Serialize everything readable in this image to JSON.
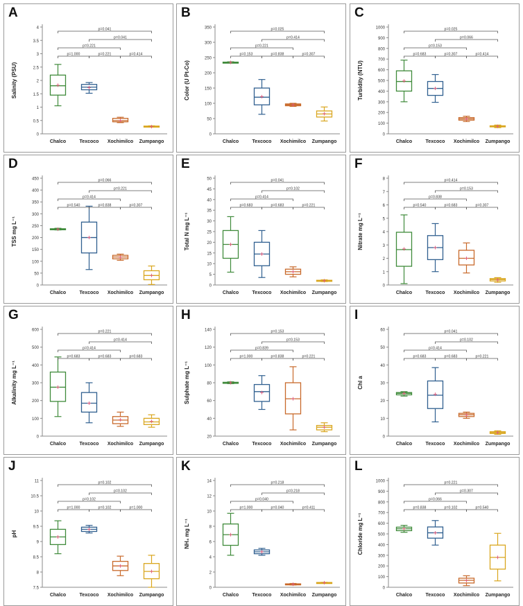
{
  "colors": {
    "Chalco": "#3f8a3a",
    "Texcoco": "#2f5f8f",
    "Xochimilco": "#c8692a",
    "Zumpango": "#d9a61e",
    "mean": "#e05a7a",
    "bracket": "#555555"
  },
  "chart_data": [
    {
      "panel": "A",
      "type": "box",
      "ylabel": "Salinity (PSU)",
      "ylim": [
        0,
        4
      ],
      "yticks": [
        "0",
        "0.5",
        "1",
        "1.5",
        "2",
        "2.5",
        "3",
        "3.5",
        "4"
      ],
      "categories": [
        "Chalco",
        "Texcoco",
        "Xochimilco",
        "Zumpango"
      ],
      "boxes": [
        {
          "min": 1.05,
          "q1": 1.45,
          "median": 1.8,
          "q3": 2.2,
          "max": 2.6,
          "mean": 1.82
        },
        {
          "min": 1.52,
          "q1": 1.65,
          "median": 1.75,
          "q3": 1.85,
          "max": 1.92,
          "mean": 1.73
        },
        {
          "min": 0.42,
          "q1": 0.45,
          "median": 0.5,
          "q3": 0.58,
          "max": 0.62,
          "mean": 0.5
        },
        {
          "min": 0.25,
          "q1": 0.26,
          "median": 0.27,
          "q3": 0.29,
          "max": 0.3,
          "mean": 0.27
        }
      ],
      "brackets": [
        {
          "from": 0,
          "to": 3,
          "label": "p=0.041"
        },
        {
          "from": 1,
          "to": 3,
          "label": "p=0.041"
        },
        {
          "from": 0,
          "to": 2,
          "label": "p=0.221"
        },
        {
          "from": 0,
          "to": 1,
          "label": "p=1.000"
        },
        {
          "from": 1,
          "to": 2,
          "label": "p=0.221"
        },
        {
          "from": 2,
          "to": 3,
          "label": "p=0.414"
        }
      ]
    },
    {
      "panel": "B",
      "type": "box",
      "ylabel": "Color (U Pt-Co)",
      "ylim": [
        0,
        350
      ],
      "yticks": [
        "0",
        "50",
        "100",
        "150",
        "200",
        "250",
        "300",
        "350"
      ],
      "categories": [
        "Chalco",
        "Texcoco",
        "Xochimilco",
        "Zumpango"
      ],
      "boxes": [
        {
          "min": 232,
          "q1": 233,
          "median": 234,
          "q3": 235,
          "max": 236,
          "mean": 234
        },
        {
          "min": 64,
          "q1": 95,
          "median": 120,
          "q3": 150,
          "max": 178,
          "mean": 122
        },
        {
          "min": 90,
          "q1": 92,
          "median": 95,
          "q3": 98,
          "max": 100,
          "mean": 95
        },
        {
          "min": 42,
          "q1": 55,
          "median": 65,
          "q3": 75,
          "max": 88,
          "mean": 66
        }
      ],
      "brackets": [
        {
          "from": 0,
          "to": 3,
          "label": "p=0.025"
        },
        {
          "from": 1,
          "to": 3,
          "label": "p=0.414"
        },
        {
          "from": 0,
          "to": 2,
          "label": "p=0.221"
        },
        {
          "from": 0,
          "to": 1,
          "label": "p=0.153"
        },
        {
          "from": 1,
          "to": 2,
          "label": "p=0.838"
        },
        {
          "from": 2,
          "to": 3,
          "label": "p=0.307"
        }
      ]
    },
    {
      "panel": "C",
      "type": "box",
      "ylabel": "Turbidity (NTU)",
      "ylim": [
        0,
        1000
      ],
      "yticks": [
        "0",
        "100",
        "200",
        "300",
        "400",
        "500",
        "600",
        "700",
        "800",
        "900",
        "1000"
      ],
      "categories": [
        "Chalco",
        "Texcoco",
        "Xochimilco",
        "Zumpango"
      ],
      "boxes": [
        {
          "min": 300,
          "q1": 400,
          "median": 490,
          "q3": 590,
          "max": 690,
          "mean": 495
        },
        {
          "min": 295,
          "q1": 360,
          "median": 425,
          "q3": 490,
          "max": 555,
          "mean": 425
        },
        {
          "min": 115,
          "q1": 128,
          "median": 140,
          "q3": 152,
          "max": 165,
          "mean": 140
        },
        {
          "min": 58,
          "q1": 65,
          "median": 70,
          "q3": 75,
          "max": 82,
          "mean": 70
        }
      ],
      "brackets": [
        {
          "from": 0,
          "to": 3,
          "label": "p=0.025"
        },
        {
          "from": 1,
          "to": 3,
          "label": "p=0.066"
        },
        {
          "from": 0,
          "to": 2,
          "label": "p=0.153"
        },
        {
          "from": 0,
          "to": 1,
          "label": "p=0.683"
        },
        {
          "from": 1,
          "to": 2,
          "label": "p=0.307"
        },
        {
          "from": 2,
          "to": 3,
          "label": "p=0.414"
        }
      ]
    },
    {
      "panel": "D",
      "type": "box",
      "ylabel": "TSS mg L⁻¹",
      "ylim": [
        0,
        450
      ],
      "yticks": [
        "0",
        "50",
        "100",
        "150",
        "200",
        "250",
        "300",
        "350",
        "400",
        "450"
      ],
      "categories": [
        "Chalco",
        "Texcoco",
        "Xochimilco",
        "Zumpango"
      ],
      "boxes": [
        {
          "min": 232,
          "q1": 233,
          "median": 235,
          "q3": 237,
          "max": 239,
          "mean": 235
        },
        {
          "min": 65,
          "q1": 135,
          "median": 200,
          "q3": 265,
          "max": 332,
          "mean": 200
        },
        {
          "min": 104,
          "q1": 110,
          "median": 118,
          "q3": 125,
          "max": 130,
          "mean": 117
        },
        {
          "min": 2,
          "q1": 22,
          "median": 40,
          "q3": 60,
          "max": 80,
          "mean": 40
        }
      ],
      "brackets": [
        {
          "from": 0,
          "to": 3,
          "label": "p=0.066"
        },
        {
          "from": 1,
          "to": 3,
          "label": "p=0.221"
        },
        {
          "from": 0,
          "to": 2,
          "label": "p=0.414"
        },
        {
          "from": 0,
          "to": 1,
          "label": "p=0.540"
        },
        {
          "from": 1,
          "to": 2,
          "label": "p=0.838"
        },
        {
          "from": 2,
          "to": 3,
          "label": "p=0.307"
        }
      ]
    },
    {
      "panel": "E",
      "type": "box",
      "ylabel": "Total N mg L⁻¹",
      "ylim": [
        0,
        50
      ],
      "yticks": [
        "0",
        "5",
        "10",
        "15",
        "20",
        "25",
        "30",
        "35",
        "40",
        "45",
        "50"
      ],
      "categories": [
        "Chalco",
        "Texcoco",
        "Xochimilco",
        "Zumpango"
      ],
      "boxes": [
        {
          "min": 6,
          "q1": 12.5,
          "median": 19,
          "q3": 25.5,
          "max": 32,
          "mean": 19
        },
        {
          "min": 3.5,
          "q1": 9,
          "median": 14.5,
          "q3": 20,
          "max": 25.5,
          "mean": 14.5
        },
        {
          "min": 3.8,
          "q1": 5,
          "median": 6.2,
          "q3": 7.4,
          "max": 8.5,
          "mean": 6.2
        },
        {
          "min": 1.6,
          "q1": 1.8,
          "median": 2,
          "q3": 2.2,
          "max": 2.4,
          "mean": 2
        }
      ],
      "brackets": [
        {
          "from": 0,
          "to": 3,
          "label": "p=0.041"
        },
        {
          "from": 1,
          "to": 3,
          "label": "p=0.102"
        },
        {
          "from": 0,
          "to": 2,
          "label": "p=0.414"
        },
        {
          "from": 0,
          "to": 1,
          "label": "p=0.683"
        },
        {
          "from": 1,
          "to": 2,
          "label": "p=0.683"
        },
        {
          "from": 2,
          "to": 3,
          "label": "p=0.221"
        }
      ]
    },
    {
      "panel": "F",
      "type": "box",
      "ylabel": "Nitrate mg L⁻¹",
      "ylim": [
        0,
        8
      ],
      "yticks": [
        "0",
        "1",
        "2",
        "3",
        "4",
        "5",
        "6",
        "7",
        "8"
      ],
      "categories": [
        "Chalco",
        "Texcoco",
        "Xochimilco",
        "Zumpango"
      ],
      "boxes": [
        {
          "min": 0.1,
          "q1": 1.4,
          "median": 2.65,
          "q3": 3.95,
          "max": 5.25,
          "mean": 2.7
        },
        {
          "min": 1.0,
          "q1": 1.9,
          "median": 2.8,
          "q3": 3.7,
          "max": 4.6,
          "mean": 2.8
        },
        {
          "min": 0.9,
          "q1": 1.5,
          "median": 2.0,
          "q3": 2.6,
          "max": 3.15,
          "mean": 2.0
        },
        {
          "min": 0.2,
          "q1": 0.3,
          "median": 0.4,
          "q3": 0.48,
          "max": 0.55,
          "mean": 0.38
        }
      ],
      "brackets": [
        {
          "from": 0,
          "to": 3,
          "label": "p=0.414"
        },
        {
          "from": 1,
          "to": 3,
          "label": "p=0.153"
        },
        {
          "from": 0,
          "to": 2,
          "label": "p=0.838"
        },
        {
          "from": 0,
          "to": 1,
          "label": "p=0.540"
        },
        {
          "from": 1,
          "to": 2,
          "label": "p=0.683"
        },
        {
          "from": 2,
          "to": 3,
          "label": "p=0.307"
        }
      ]
    },
    {
      "panel": "G",
      "type": "box",
      "ylabel": "Alkalinity mg L⁻¹",
      "ylim": [
        0,
        600
      ],
      "yticks": [
        "0",
        "100",
        "200",
        "300",
        "400",
        "500",
        "600"
      ],
      "categories": [
        "Chalco",
        "Texcoco",
        "Xochimilco",
        "Zumpango"
      ],
      "boxes": [
        {
          "min": 110,
          "q1": 195,
          "median": 275,
          "q3": 360,
          "max": 445,
          "mean": 275
        },
        {
          "min": 75,
          "q1": 135,
          "median": 185,
          "q3": 245,
          "max": 300,
          "mean": 185
        },
        {
          "min": 55,
          "q1": 70,
          "median": 90,
          "q3": 110,
          "max": 135,
          "mean": 92
        },
        {
          "min": 50,
          "q1": 65,
          "median": 80,
          "q3": 100,
          "max": 120,
          "mean": 83
        }
      ],
      "brackets": [
        {
          "from": 0,
          "to": 3,
          "label": "p=0.221"
        },
        {
          "from": 1,
          "to": 3,
          "label": "p=0.414"
        },
        {
          "from": 0,
          "to": 2,
          "label": "p=0.414"
        },
        {
          "from": 0,
          "to": 1,
          "label": "p=0.683"
        },
        {
          "from": 1,
          "to": 2,
          "label": "p=0.683"
        },
        {
          "from": 2,
          "to": 3,
          "label": "p=0.683"
        }
      ]
    },
    {
      "panel": "H",
      "type": "box",
      "ylabel": "Sulphate mg L⁻¹",
      "ylim": [
        20,
        140
      ],
      "yticks": [
        "20",
        "40",
        "60",
        "80",
        "100",
        "120",
        "140"
      ],
      "categories": [
        "Chalco",
        "Texcoco",
        "Xochimilco",
        "Zumpango"
      ],
      "boxes": [
        {
          "min": 79,
          "q1": 79.5,
          "median": 80,
          "q3": 80.5,
          "max": 81,
          "mean": 80
        },
        {
          "min": 50,
          "q1": 59,
          "median": 70,
          "q3": 78,
          "max": 88,
          "mean": 69
        },
        {
          "min": 27,
          "q1": 45,
          "median": 62,
          "q3": 80,
          "max": 98,
          "mean": 62
        },
        {
          "min": 25,
          "q1": 27,
          "median": 30,
          "q3": 32,
          "max": 35,
          "mean": 30
        }
      ],
      "brackets": [
        {
          "from": 0,
          "to": 3,
          "label": "p=0.153"
        },
        {
          "from": 1,
          "to": 3,
          "label": "p=0.153"
        },
        {
          "from": 0,
          "to": 2,
          "label": "p=0.839"
        },
        {
          "from": 0,
          "to": 1,
          "label": "p=1.000"
        },
        {
          "from": 1,
          "to": 2,
          "label": "p=0.838"
        },
        {
          "from": 2,
          "to": 3,
          "label": "p=0.221"
        }
      ]
    },
    {
      "panel": "I",
      "type": "box",
      "ylabel": "Chl a",
      "ylim": [
        0,
        60
      ],
      "yticks": [
        "0",
        "10",
        "20",
        "30",
        "40",
        "50",
        "60"
      ],
      "categories": [
        "Chalco",
        "Texcoco",
        "Xochimilco",
        "Zumpango"
      ],
      "boxes": [
        {
          "min": 22.5,
          "q1": 23.2,
          "median": 24,
          "q3": 24.5,
          "max": 25,
          "mean": 24
        },
        {
          "min": 8,
          "q1": 15.5,
          "median": 23,
          "q3": 31,
          "max": 38.5,
          "mean": 23.5
        },
        {
          "min": 10,
          "q1": 11,
          "median": 12,
          "q3": 12.8,
          "max": 13.5,
          "mean": 11.8
        },
        {
          "min": 1,
          "q1": 1.5,
          "median": 2,
          "q3": 2.5,
          "max": 3,
          "mean": 2
        }
      ],
      "brackets": [
        {
          "from": 0,
          "to": 3,
          "label": "p=0.041"
        },
        {
          "from": 1,
          "to": 3,
          "label": "p=0.102"
        },
        {
          "from": 0,
          "to": 2,
          "label": "p=0.414"
        },
        {
          "from": 0,
          "to": 1,
          "label": "p=0.683"
        },
        {
          "from": 1,
          "to": 2,
          "label": "p=0.683"
        },
        {
          "from": 2,
          "to": 3,
          "label": "p=0.221"
        }
      ]
    },
    {
      "panel": "J",
      "type": "box",
      "ylabel": "pH",
      "ylim": [
        7.5,
        11
      ],
      "yticks": [
        "7.5",
        "8",
        "8.5",
        "9",
        "9.5",
        "10",
        "10.5",
        "11"
      ],
      "categories": [
        "Chalco",
        "Texcoco",
        "Xochimilco",
        "Zumpango"
      ],
      "boxes": [
        {
          "min": 8.6,
          "q1": 8.9,
          "median": 9.15,
          "q3": 9.4,
          "max": 9.68,
          "mean": 9.15
        },
        {
          "min": 9.28,
          "q1": 9.33,
          "median": 9.4,
          "q3": 9.47,
          "max": 9.53,
          "mean": 9.4
        },
        {
          "min": 7.88,
          "q1": 8.05,
          "median": 8.2,
          "q3": 8.35,
          "max": 8.52,
          "mean": 8.2
        },
        {
          "min": 7.5,
          "q1": 7.78,
          "median": 8.02,
          "q3": 8.28,
          "max": 8.55,
          "mean": 8.02
        }
      ],
      "brackets": [
        {
          "from": 0,
          "to": 3,
          "label": "p=0.102"
        },
        {
          "from": 1,
          "to": 3,
          "label": "p=0.102"
        },
        {
          "from": 0,
          "to": 2,
          "label": "p=0.102"
        },
        {
          "from": 0,
          "to": 1,
          "label": "p=1.000"
        },
        {
          "from": 1,
          "to": 2,
          "label": "p=0.102"
        },
        {
          "from": 2,
          "to": 3,
          "label": "p=1.000"
        }
      ]
    },
    {
      "panel": "K",
      "type": "box",
      "ylabel": "NH₄ mg L⁻¹",
      "ylim": [
        0,
        14
      ],
      "yticks": [
        "0",
        "2",
        "4",
        "6",
        "8",
        "10",
        "12",
        "14"
      ],
      "categories": [
        "Chalco",
        "Texcoco",
        "Xochimilco",
        "Zumpango"
      ],
      "boxes": [
        {
          "min": 4.2,
          "q1": 5.5,
          "median": 6.9,
          "q3": 8.3,
          "max": 9.7,
          "mean": 6.9
        },
        {
          "min": 4.2,
          "q1": 4.4,
          "median": 4.65,
          "q3": 4.9,
          "max": 5.1,
          "mean": 4.65
        },
        {
          "min": 0.3,
          "q1": 0.35,
          "median": 0.4,
          "q3": 0.45,
          "max": 0.5,
          "mean": 0.4
        },
        {
          "min": 0.55,
          "q1": 0.57,
          "median": 0.6,
          "q3": 0.63,
          "max": 0.65,
          "mean": 0.6
        }
      ],
      "brackets": [
        {
          "from": 0,
          "to": 3,
          "label": "p=0.218"
        },
        {
          "from": 1,
          "to": 3,
          "label": "p=0.218"
        },
        {
          "from": 0,
          "to": 2,
          "label": "p=0.040"
        },
        {
          "from": 0,
          "to": 1,
          "label": "p=1.000"
        },
        {
          "from": 1,
          "to": 2,
          "label": "p=0.040"
        },
        {
          "from": 2,
          "to": 3,
          "label": "p=0.411"
        }
      ]
    },
    {
      "panel": "L",
      "type": "box",
      "ylabel": "Chloride mg L⁻¹",
      "ylim": [
        0,
        1000
      ],
      "yticks": [
        "0",
        "100",
        "200",
        "300",
        "400",
        "500",
        "600",
        "700",
        "800",
        "900",
        "1000"
      ],
      "categories": [
        "Chalco",
        "Texcoco",
        "Xochimilco",
        "Zumpango"
      ],
      "boxes": [
        {
          "min": 515,
          "q1": 530,
          "median": 548,
          "q3": 563,
          "max": 580,
          "mean": 548
        },
        {
          "min": 395,
          "q1": 460,
          "median": 510,
          "q3": 565,
          "max": 625,
          "mean": 510
        },
        {
          "min": 15,
          "q1": 40,
          "median": 65,
          "q3": 85,
          "max": 108,
          "mean": 63
        },
        {
          "min": 60,
          "q1": 170,
          "median": 280,
          "q3": 395,
          "max": 505,
          "mean": 280
        }
      ],
      "brackets": [
        {
          "from": 0,
          "to": 3,
          "label": "p=0.221"
        },
        {
          "from": 1,
          "to": 3,
          "label": "p=0.307"
        },
        {
          "from": 0,
          "to": 2,
          "label": "p=0.066"
        },
        {
          "from": 0,
          "to": 1,
          "label": "p=0.838"
        },
        {
          "from": 1,
          "to": 2,
          "label": "p=0.102"
        },
        {
          "from": 2,
          "to": 3,
          "label": "p=0.540"
        }
      ]
    }
  ]
}
